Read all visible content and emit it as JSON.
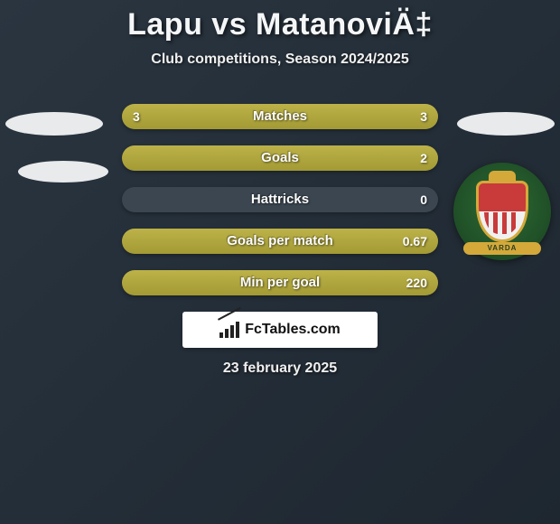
{
  "title": "Lapu vs MatanoviÄ‡",
  "subtitle": "Club competitions, Season 2024/2025",
  "date": "23 february 2025",
  "brand": "FcTables.com",
  "club_banner": "VARDA",
  "colors": {
    "bar_track": "#3b4650",
    "olive": "#b0a73d",
    "olive_grad_a": "#bcb248",
    "olive_grad_b": "#a39a35"
  },
  "bars": [
    {
      "label": "Matches",
      "left": "3",
      "right": "3",
      "left_pct": 50,
      "right_pct": 50
    },
    {
      "label": "Goals",
      "left": "",
      "right": "2",
      "left_pct": 0,
      "right_pct": 100
    },
    {
      "label": "Hattricks",
      "left": "",
      "right": "0",
      "left_pct": 0,
      "right_pct": 0
    },
    {
      "label": "Goals per match",
      "left": "",
      "right": "0.67",
      "left_pct": 0,
      "right_pct": 100
    },
    {
      "label": "Min per goal",
      "left": "",
      "right": "220",
      "left_pct": 0,
      "right_pct": 100
    }
  ]
}
